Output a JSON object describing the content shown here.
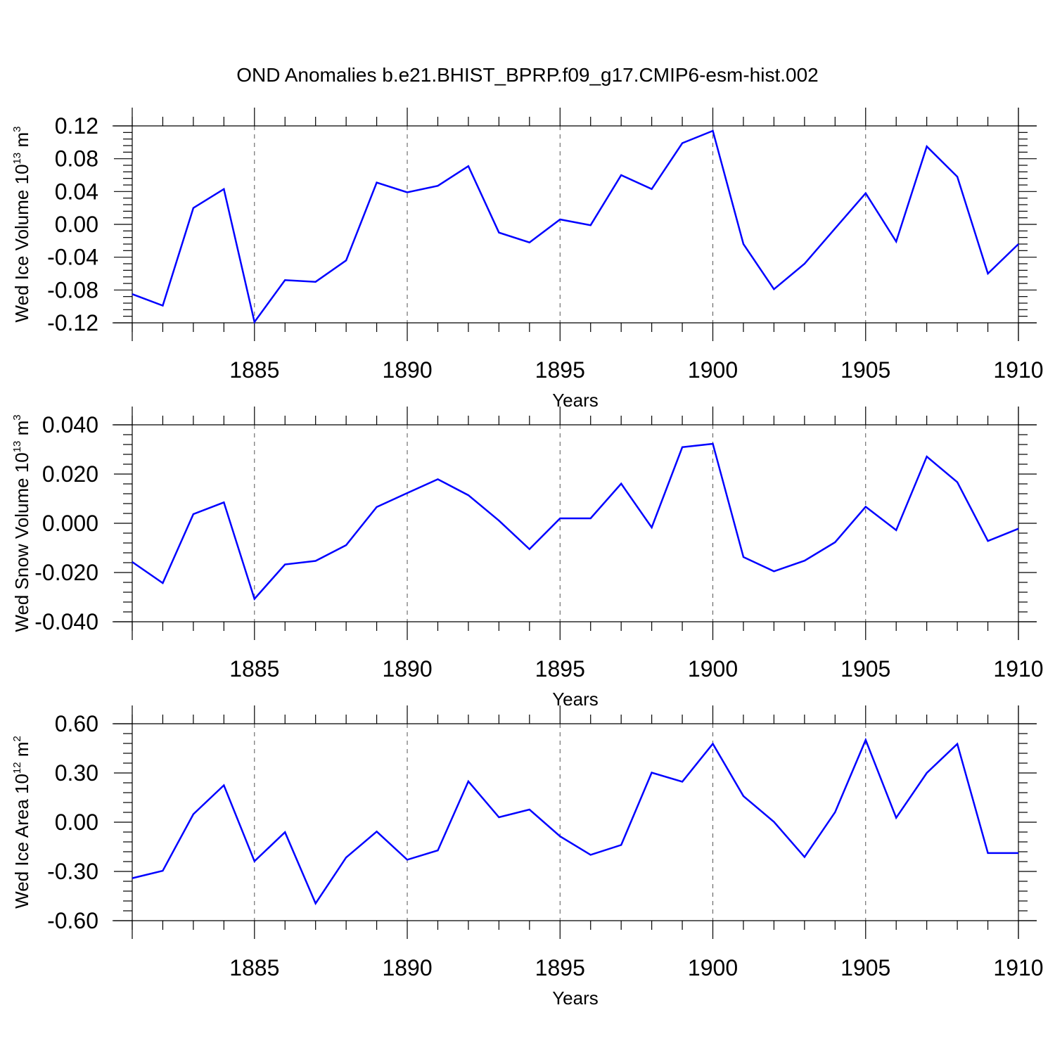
{
  "title": "OND Anomalies b.e21.BHIST_BPRP.f09_g17.CMIP6-esm-hist.002",
  "colors": {
    "line": "#0000ff",
    "axis": "#000000",
    "grid": "#555555"
  },
  "chart_data": [
    {
      "type": "line",
      "xlabel": "Years",
      "ylabel": {
        "base": "Wed Ice Volume 10",
        "exp1": "13",
        "mid": " m",
        "exp2": "3"
      },
      "xlim": [
        1881,
        1910
      ],
      "ylim": [
        -0.12,
        0.12
      ],
      "xticks": [
        1885,
        1890,
        1895,
        1900,
        1905,
        1910
      ],
      "xtick_labels": [
        "1885",
        "1890",
        "1895",
        "1900",
        "1905",
        "1910"
      ],
      "yticks": [
        -0.12,
        -0.08,
        -0.04,
        0.0,
        0.04,
        0.08,
        0.12
      ],
      "ytick_labels": [
        "-0.12",
        "-0.08",
        "-0.04",
        "0.00",
        "0.04",
        "0.08",
        "0.12"
      ],
      "x": [
        1881,
        1882,
        1883,
        1884,
        1885,
        1886,
        1887,
        1888,
        1889,
        1890,
        1891,
        1892,
        1893,
        1894,
        1895,
        1896,
        1897,
        1898,
        1899,
        1900,
        1901,
        1902,
        1903,
        1904,
        1905,
        1906,
        1907,
        1908,
        1909,
        1910
      ],
      "values": [
        -0.085,
        -0.099,
        0.02,
        0.043,
        -0.119,
        -0.068,
        -0.07,
        -0.044,
        0.051,
        0.039,
        0.047,
        0.071,
        -0.01,
        -0.022,
        0.006,
        -0.001,
        0.06,
        0.043,
        0.099,
        0.114,
        -0.024,
        -0.079,
        -0.048,
        -0.005,
        0.038,
        -0.021,
        0.095,
        0.058,
        -0.06,
        -0.024
      ],
      "grid": "dashed vertical at major x ticks"
    },
    {
      "type": "line",
      "xlabel": "Years",
      "ylabel": {
        "base": "Wed Snow Volume 10",
        "exp1": "13",
        "mid": " m",
        "exp2": "3"
      },
      "xlim": [
        1881,
        1910
      ],
      "ylim": [
        -0.04,
        0.04
      ],
      "xticks": [
        1885,
        1890,
        1895,
        1900,
        1905,
        1910
      ],
      "xtick_labels": [
        "1885",
        "1890",
        "1895",
        "1900",
        "1905",
        "1910"
      ],
      "yticks": [
        -0.04,
        -0.02,
        0.0,
        0.02,
        0.04
      ],
      "ytick_labels": [
        "-0.040",
        "-0.020",
        "0.000",
        "0.020",
        "0.040"
      ],
      "x": [
        1881,
        1882,
        1883,
        1884,
        1885,
        1886,
        1887,
        1888,
        1889,
        1890,
        1891,
        1892,
        1893,
        1894,
        1895,
        1896,
        1897,
        1898,
        1899,
        1900,
        1901,
        1902,
        1903,
        1904,
        1905,
        1906,
        1907,
        1908,
        1909,
        1910
      ],
      "values": [
        -0.0157,
        -0.0243,
        0.0037,
        0.0085,
        -0.0307,
        -0.0167,
        -0.0153,
        -0.0089,
        0.0066,
        0.0123,
        0.0179,
        0.0114,
        0.0011,
        -0.0105,
        0.002,
        0.002,
        0.0161,
        -0.0017,
        0.0309,
        0.0323,
        -0.0137,
        -0.0195,
        -0.0152,
        -0.0077,
        0.0067,
        -0.0028,
        0.0271,
        0.0167,
        -0.0072,
        -0.0022
      ],
      "grid": "dashed vertical at major x ticks"
    },
    {
      "type": "line",
      "xlabel": "Years",
      "ylabel": {
        "base": "Wed Ice Area 10",
        "exp1": "12",
        "mid": " m",
        "exp2": "2"
      },
      "xlim": [
        1881,
        1910
      ],
      "ylim": [
        -0.6,
        0.6
      ],
      "xticks": [
        1885,
        1890,
        1895,
        1900,
        1905,
        1910
      ],
      "xtick_labels": [
        "1885",
        "1890",
        "1895",
        "1900",
        "1905",
        "1910"
      ],
      "yticks": [
        -0.6,
        -0.3,
        0.0,
        0.3,
        0.6
      ],
      "ytick_labels": [
        "-0.60",
        "-0.30",
        "0.00",
        "0.30",
        "0.60"
      ],
      "x": [
        1881,
        1882,
        1883,
        1884,
        1885,
        1886,
        1887,
        1888,
        1889,
        1890,
        1891,
        1892,
        1893,
        1894,
        1895,
        1896,
        1897,
        1898,
        1899,
        1900,
        1901,
        1902,
        1903,
        1904,
        1905,
        1906,
        1907,
        1908,
        1909,
        1910
      ],
      "values": [
        -0.341,
        -0.296,
        0.049,
        0.225,
        -0.238,
        -0.061,
        -0.495,
        -0.215,
        -0.057,
        -0.229,
        -0.172,
        0.249,
        0.03,
        0.077,
        -0.086,
        -0.199,
        -0.139,
        0.302,
        0.247,
        0.478,
        0.159,
        0.002,
        -0.212,
        0.061,
        0.501,
        0.027,
        0.3,
        0.477,
        -0.188,
        -0.188
      ],
      "grid": "dashed vertical at major x ticks"
    }
  ]
}
